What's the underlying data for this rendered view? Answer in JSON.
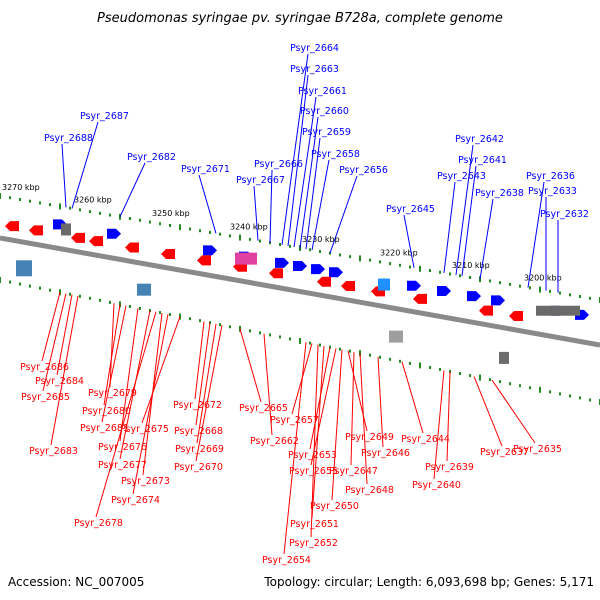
{
  "header": {
    "title": "Pseudomonas syringae pv. syringae B728a, complete genome"
  },
  "footer": {
    "accession": "Accession: NC_007005",
    "topology": "Topology: circular; Length: 6,093,698 bp; Genes: 5,171"
  },
  "colors": {
    "forward_gene": "#0000ff",
    "reverse_gene": "#ff0000",
    "backbone": "#8a8a8a",
    "tick": "#228b22"
  },
  "scale_labels": [
    "3270 kbp",
    "3260 kbp",
    "3250 kbp",
    "3240 kbp",
    "3230 kbp",
    "3220 kbp",
    "3210 kbp",
    "3200 kbp"
  ],
  "forward_labels": [
    "Psyr_2687",
    "Psyr_2688",
    "Psyr_2682",
    "Psyr_2671",
    "Psyr_2664",
    "Psyr_2663",
    "Psyr_2661",
    "Psyr_2660",
    "Psyr_2659",
    "Psyr_2658",
    "Psyr_2666",
    "Psyr_2667",
    "Psyr_2656",
    "Psyr_2645",
    "Psyr_2642",
    "Psyr_2641",
    "Psyr_2643",
    "Psyr_2638",
    "Psyr_2636",
    "Psyr_2633",
    "Psyr_2632"
  ],
  "reverse_labels": [
    "Psyr_2686",
    "Psyr_2684",
    "Psyr_2685",
    "Psyr_2683",
    "Psyr_2679",
    "Psyr_2680",
    "Psyr_2681",
    "Psyr_2676",
    "Psyr_2677",
    "Psyr_2673",
    "Psyr_2674",
    "Psyr_2678",
    "Psyr_2672",
    "Psyr_2675",
    "Psyr_2668",
    "Psyr_2669",
    "Psyr_2670",
    "Psyr_2665",
    "Psyr_2662",
    "Psyr_2657",
    "Psyr_2653",
    "Psyr_2655",
    "Psyr_2649",
    "Psyr_2647",
    "Psyr_2648",
    "Psyr_2650",
    "Psyr_2651",
    "Psyr_2652",
    "Psyr_2654",
    "Psyr_2646",
    "Psyr_2644",
    "Psyr_2639",
    "Psyr_2640",
    "Psyr_2637",
    "Psyr_2635"
  ]
}
